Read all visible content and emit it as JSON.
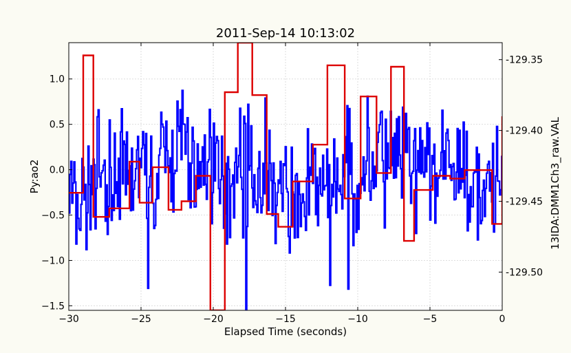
{
  "chart_data": {
    "type": "line",
    "title": "2011-Sep-14 10:13:02",
    "xlabel": "Elapsed Time (seconds)",
    "ylabel_left": "Py:ao2",
    "ylabel_right": "13IDA:DMM1Ch3_raw.VAL",
    "xlim": [
      -30,
      0
    ],
    "ylim_left": [
      -1.55,
      1.4
    ],
    "ylim_right": [
      -129.527,
      -129.338
    ],
    "x_ticks": [
      -30,
      -25,
      -20,
      -15,
      -10,
      -5,
      0
    ],
    "y_ticks_left": [
      -1.5,
      -1.0,
      -0.5,
      0.0,
      0.5,
      1.0
    ],
    "y_ticks_right": [
      -129.35,
      -129.4,
      -129.45,
      -129.5
    ],
    "x_tick_labels": [
      "−30",
      "−25",
      "−20",
      "−15",
      "−10",
      "−5",
      "0"
    ],
    "y_tick_labels_left": [
      "−1.5",
      "−1.0",
      "−0.5",
      "0.0",
      "0.5",
      "1.0"
    ],
    "y_tick_labels_right": [
      "-129.35",
      "-129.40",
      "-129.45",
      "-129.50"
    ],
    "grid": true,
    "series": [
      {
        "axis": "left",
        "color": "#0000ff",
        "style": "noisy-steps",
        "x": [
          -30,
          -29.5,
          -29,
          -28.5,
          -28,
          -27.5,
          -27,
          -26.5,
          -26,
          -25.5,
          -25,
          -24.5,
          -24,
          -23.5,
          -23,
          -22.5,
          -22,
          -21.5,
          -21,
          -20.5,
          -20,
          -19.5,
          -19,
          -18.5,
          -18,
          -17.5,
          -17,
          -16.5,
          -16,
          -15.5,
          -15,
          -14.5,
          -14,
          -13.5,
          -13,
          -12.5,
          -12,
          -11.5,
          -11,
          -10.5,
          -10,
          -9.5,
          -9,
          -8.5,
          -8,
          -7.5,
          -7,
          -6.5,
          -6,
          -5.5,
          -5,
          -4.5,
          -4,
          -3.5,
          -3,
          -2.5,
          -2,
          -1.5,
          -1,
          -0.5,
          0
        ],
        "y": [
          -0.2,
          -0.4,
          -0.3,
          -0.1,
          -0.2,
          -0.3,
          -0.1,
          0.1,
          -0.2,
          -0.1,
          0.0,
          -0.2,
          -0.1,
          0.2,
          0.1,
          0.3,
          0.2,
          0.0,
          -0.1,
          0.1,
          0.0,
          -0.2,
          0.1,
          0.0,
          0.1,
          0.0,
          -0.2,
          -0.1,
          -0.3,
          -0.2,
          -0.3,
          -0.4,
          -0.3,
          -0.2,
          -0.1,
          -0.3,
          -0.2,
          -0.1,
          0.0,
          -0.2,
          -0.1,
          0.1,
          0.0,
          0.2,
          0.1,
          0.0,
          0.2,
          0.1,
          -0.1,
          0.0,
          0.1,
          -0.1,
          0.0,
          0.1,
          0.0,
          -0.1,
          0.0,
          -0.1,
          -0.2,
          -0.3,
          0.1
        ]
      },
      {
        "axis": "right",
        "color": "#dd0000",
        "style": "steps",
        "x": [
          -30,
          -29,
          -28.3,
          -27.2,
          -26.8,
          -25.8,
          -25.1,
          -24.2,
          -23.1,
          -22.2,
          -21.2,
          -20.2,
          -19.2,
          -18.3,
          -17.3,
          -16.3,
          -15.5,
          -14.5,
          -13.1,
          -12.1,
          -10.9,
          -9.8,
          -8.7,
          -7.7,
          -6.8,
          -6.1,
          -4.8,
          -3.6,
          -2.6,
          -1.7,
          -0.7,
          0
        ],
        "y": [
          -129.444,
          -129.347,
          -129.461,
          -129.455,
          -129.455,
          -129.422,
          -129.451,
          -129.426,
          -129.456,
          -129.45,
          -129.432,
          -129.527,
          -129.373,
          -129.338,
          -129.375,
          -129.459,
          -129.468,
          -129.436,
          -129.41,
          -129.354,
          -129.448,
          -129.376,
          -129.43,
          -129.355,
          -129.478,
          -129.442,
          -129.432,
          -129.434,
          -129.428,
          -129.428,
          -129.466,
          -129.39
        ]
      }
    ]
  }
}
